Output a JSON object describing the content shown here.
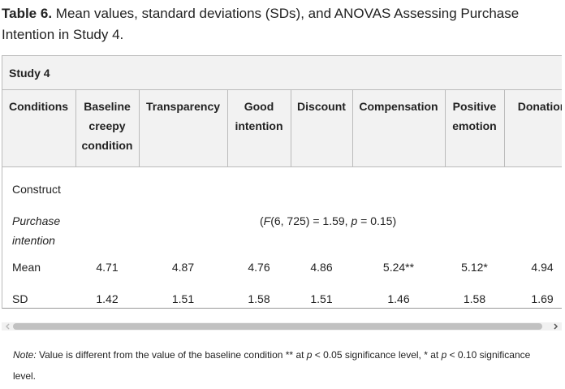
{
  "caption": {
    "label": "Table 6.",
    "text": "Mean values, standard deviations (SDs), and ANOVAS Assessing Purchase Intention in Study 4."
  },
  "table": {
    "title": "Study 4",
    "header": [
      "Conditions",
      "Baseline creepy condition",
      "Transparency",
      "Good intention",
      "Discount",
      "Compensation",
      "Positive emotion",
      "Donation"
    ],
    "construct": "Construct",
    "anova_row": {
      "label": "Purchase intention",
      "test": [
        "(",
        "F",
        "(6, 725) = 1.59, ",
        "p",
        " = 0.15)"
      ]
    },
    "rows": [
      [
        "Mean",
        "4.71",
        "4.87",
        "4.76",
        "4.86",
        "5.24**",
        "5.12*",
        "4.94"
      ],
      [
        "SD",
        "1.42",
        "1.51",
        "1.58",
        "1.51",
        "1.46",
        "1.58",
        "1.69"
      ]
    ]
  },
  "note": {
    "label": "Note:",
    "text": [
      " Value is different from the value of the baseline condition ** at ",
      "p",
      " < 0.05 significance level, * at ",
      "p",
      " < 0.10 significance level."
    ]
  }
}
